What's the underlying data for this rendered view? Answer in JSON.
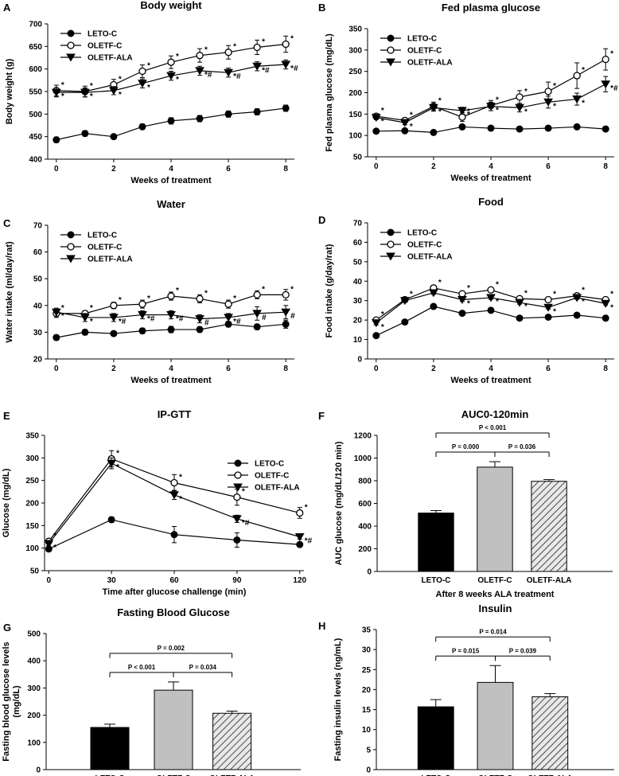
{
  "figure": {
    "colors": {
      "leto": "#000000",
      "oletf": "#ffffff",
      "bar_gray": "#c0c0c0",
      "hatch_bg": "#e8e8e8"
    }
  },
  "chart_data": [
    {
      "type": "line",
      "letter": "A",
      "title": "Body weight",
      "xlabel": "Weeks of treatment",
      "ylabel": "Body weight (g)",
      "xlim": [
        -0.3,
        8.3
      ],
      "ylim": [
        400,
        700
      ],
      "xticks": [
        0,
        2,
        4,
        6,
        8
      ],
      "yticks": [
        400,
        450,
        500,
        550,
        600,
        650,
        700
      ],
      "legend": {
        "position": "top-left"
      },
      "series": [
        {
          "name": "LETO-C",
          "marker": "filled-circle",
          "x": [
            0,
            1,
            2,
            3,
            4,
            5,
            6,
            7,
            8
          ],
          "y": [
            443,
            457,
            450,
            472,
            485,
            490,
            500,
            505,
            513
          ],
          "err": [
            6,
            6,
            5,
            6,
            7,
            7,
            7,
            7,
            7
          ],
          "ann": [
            "",
            "",
            "",
            "",
            "",
            "",
            "",
            "",
            ""
          ]
        },
        {
          "name": "OLETF-C",
          "marker": "open-circle",
          "x": [
            0,
            1,
            2,
            3,
            4,
            5,
            6,
            7,
            8
          ],
          "y": [
            552,
            550,
            565,
            595,
            615,
            630,
            637,
            648,
            655
          ],
          "err": [
            12,
            12,
            12,
            14,
            14,
            15,
            15,
            16,
            18
          ],
          "ann": [
            "*",
            "*",
            "*",
            "*",
            "*",
            "*",
            "*",
            "*",
            "*"
          ]
        },
        {
          "name": "OLETF-ALA",
          "marker": "filled-triangle",
          "x": [
            0,
            1,
            2,
            3,
            4,
            5,
            6,
            7,
            8
          ],
          "y": [
            548,
            548,
            552,
            568,
            585,
            596,
            592,
            606,
            610
          ],
          "err": [
            10,
            10,
            9,
            10,
            10,
            10,
            10,
            10,
            10
          ],
          "ann": [
            "*",
            "*",
            "*",
            "*",
            "*",
            "*#",
            "*#",
            "*#",
            "*#"
          ]
        }
      ]
    },
    {
      "type": "line",
      "letter": "B",
      "title": "Fed plasma glucose",
      "xlabel": "Weeks of treatment",
      "ylabel": "Fed plasma glucose (mg/dL)",
      "xlim": [
        -0.3,
        8.3
      ],
      "ylim": [
        50,
        350
      ],
      "xticks": [
        0,
        2,
        4,
        6,
        8
      ],
      "yticks": [
        50,
        100,
        150,
        200,
        250,
        300,
        350
      ],
      "legend": {
        "position": "top-left"
      },
      "series": [
        {
          "name": "LETO-C",
          "marker": "filled-circle",
          "x": [
            0,
            1,
            2,
            3,
            4,
            5,
            6,
            7,
            8
          ],
          "y": [
            110,
            111,
            107,
            120,
            117,
            115,
            117,
            120,
            115
          ],
          "err": [
            3,
            3,
            3,
            3,
            3,
            3,
            3,
            3,
            3
          ],
          "ann": [
            "",
            "",
            "",
            "",
            "",
            "",
            "",
            "",
            ""
          ]
        },
        {
          "name": "OLETF-C",
          "marker": "open-circle",
          "x": [
            0,
            1,
            2,
            3,
            4,
            5,
            6,
            7,
            8
          ],
          "y": [
            145,
            135,
            168,
            143,
            170,
            190,
            203,
            240,
            278
          ],
          "err": [
            6,
            6,
            10,
            10,
            12,
            15,
            22,
            30,
            25
          ],
          "ann": [
            "*",
            "*",
            "*",
            "*",
            "*",
            "*",
            "*",
            "*",
            "*"
          ]
        },
        {
          "name": "OLETF-ALA",
          "marker": "filled-triangle",
          "x": [
            0,
            1,
            2,
            3,
            4,
            5,
            6,
            7,
            8
          ],
          "y": [
            142,
            130,
            165,
            158,
            168,
            165,
            178,
            185,
            220
          ],
          "err": [
            5,
            5,
            8,
            8,
            10,
            10,
            14,
            14,
            18
          ],
          "ann": [
            "*",
            "*",
            "*",
            "*",
            "*",
            "*",
            "*",
            "*",
            "*#"
          ]
        }
      ]
    },
    {
      "type": "line",
      "letter": "C",
      "title": "Water",
      "xlabel": "Weeks of treatment",
      "ylabel": "Water intake (ml/day/rat)",
      "xlim": [
        -0.3,
        8.3
      ],
      "ylim": [
        20,
        70
      ],
      "xticks": [
        0,
        2,
        4,
        6,
        8
      ],
      "yticks": [
        20,
        30,
        40,
        50,
        60,
        70
      ],
      "legend": {
        "position": "top-left"
      },
      "series": [
        {
          "name": "LETO-C",
          "marker": "filled-circle",
          "x": [
            0,
            1,
            2,
            3,
            4,
            5,
            6,
            7,
            8
          ],
          "y": [
            28,
            30,
            29.5,
            30.5,
            31,
            31,
            33,
            32,
            33
          ],
          "err": [
            1,
            1,
            0.8,
            1,
            1.2,
            1,
            1,
            1,
            1.5
          ],
          "ann": [
            "",
            "",
            "",
            "",
            "",
            "",
            "",
            "",
            ""
          ]
        },
        {
          "name": "OLETF-C",
          "marker": "open-circle",
          "x": [
            0,
            1,
            2,
            3,
            4,
            5,
            6,
            7,
            8
          ],
          "y": [
            37,
            37,
            40,
            40.5,
            43.5,
            42.5,
            40.5,
            44,
            44
          ],
          "err": [
            1.5,
            1,
            1.2,
            1.5,
            1.5,
            1.5,
            1.5,
            1.5,
            2
          ],
          "ann": [
            "*",
            "*",
            "*",
            "*",
            "*",
            "*",
            "*",
            "*",
            "*"
          ]
        },
        {
          "name": "OLETF-ALA",
          "marker": "filled-triangle",
          "x": [
            0,
            1,
            2,
            3,
            4,
            5,
            6,
            7,
            8
          ],
          "y": [
            37.5,
            35.5,
            35.5,
            36.5,
            36.5,
            35,
            35.5,
            37,
            37.5
          ],
          "err": [
            1.5,
            1.5,
            1.5,
            1.5,
            1.5,
            1.5,
            1.5,
            2.5,
            2.5
          ],
          "ann": [
            "*",
            "*",
            "*#",
            "*#",
            "*#",
            "#",
            "*#",
            "#",
            "#"
          ]
        }
      ]
    },
    {
      "type": "line",
      "letter": "D",
      "title": "Food",
      "xlabel": "Weeks of treatment",
      "ylabel": "Food intake (g/day/rat)",
      "xlim": [
        -0.3,
        8.3
      ],
      "ylim": [
        0,
        70
      ],
      "xticks": [
        0,
        2,
        4,
        6,
        8
      ],
      "yticks": [
        0,
        10,
        20,
        30,
        40,
        50,
        60,
        70
      ],
      "legend": {
        "position": "top-left"
      },
      "series": [
        {
          "name": "LETO-C",
          "marker": "filled-circle",
          "x": [
            0,
            1,
            2,
            3,
            4,
            5,
            6,
            7,
            8
          ],
          "y": [
            12,
            19,
            27,
            23.5,
            25,
            21,
            21.5,
            22.5,
            21
          ],
          "err": [
            0.5,
            0.5,
            0.5,
            0.5,
            0.5,
            0.5,
            0.5,
            0.5,
            0.5
          ],
          "ann": [
            "",
            "",
            "",
            "",
            "",
            "",
            "",
            "",
            ""
          ]
        },
        {
          "name": "OLETF-C",
          "marker": "open-circle",
          "x": [
            0,
            1,
            2,
            3,
            4,
            5,
            6,
            7,
            8
          ],
          "y": [
            20,
            30.5,
            36.5,
            33.5,
            35.5,
            31,
            30.5,
            32.5,
            30.5
          ],
          "err": [
            1,
            0.8,
            0.8,
            0.8,
            0.8,
            0.8,
            0.8,
            0.8,
            0.8
          ],
          "ann": [
            "*",
            "*",
            "*",
            "*",
            "*",
            "*",
            "*",
            "*",
            "*"
          ]
        },
        {
          "name": "OLETF-ALA",
          "marker": "filled-triangle",
          "x": [
            0,
            1,
            2,
            3,
            4,
            5,
            6,
            7,
            8
          ],
          "y": [
            18.5,
            30,
            34,
            30.5,
            31.5,
            29,
            26.5,
            31.5,
            28.5
          ],
          "err": [
            1,
            0.8,
            0.8,
            0.8,
            0.8,
            0.8,
            0.8,
            0.8,
            0.8
          ],
          "ann": [
            "*",
            "",
            "",
            "*",
            "*",
            "*",
            "*",
            "*",
            "*"
          ]
        }
      ]
    },
    {
      "type": "line",
      "letter": "E",
      "title": "IP-GTT",
      "xlabel": "Time after glucose challenge (min)",
      "ylabel": "Glucose (mg/dL)",
      "xlim": [
        -2,
        122
      ],
      "ylim": [
        50,
        350
      ],
      "xticks": [
        0,
        30,
        60,
        90,
        120
      ],
      "yticks": [
        50,
        100,
        150,
        200,
        250,
        300,
        350
      ],
      "legend": {
        "position": "top-right"
      },
      "series": [
        {
          "name": "LETO-C",
          "marker": "filled-circle",
          "x": [
            0,
            30,
            60,
            90,
            120
          ],
          "y": [
            98,
            163,
            130,
            118,
            108
          ],
          "err": [
            3,
            6,
            18,
            16,
            4
          ],
          "ann": [
            "",
            "",
            "",
            "",
            ""
          ]
        },
        {
          "name": "OLETF-C",
          "marker": "open-circle",
          "x": [
            0,
            30,
            60,
            90,
            120
          ],
          "y": [
            115,
            298,
            245,
            213,
            178
          ],
          "err": [
            4,
            18,
            18,
            18,
            12
          ],
          "ann": [
            "*",
            "*",
            "*",
            "*",
            "*"
          ]
        },
        {
          "name": "OLETF-ALA",
          "marker": "filled-triangle",
          "x": [
            0,
            30,
            60,
            90,
            120
          ],
          "y": [
            110,
            288,
            218,
            165,
            125
          ],
          "err": [
            4,
            12,
            10,
            8,
            5
          ],
          "ann": [
            "*",
            "*",
            "*",
            "*#",
            "*#"
          ]
        }
      ]
    },
    {
      "type": "bar",
      "letter": "F",
      "title": "AUC0-120min",
      "xlabel": "After 8 weeks ALA treatment",
      "ylabel": "AUC glucose (mg/dL/120 min)",
      "ylim": [
        0,
        1200
      ],
      "yticks": [
        0,
        200,
        400,
        600,
        800,
        1000,
        1200
      ],
      "categories": [
        "LETO-C",
        "OLETF-C",
        "OLETF-ALA"
      ],
      "values": [
        515,
        920,
        795
      ],
      "err": [
        22,
        48,
        15
      ],
      "comparisons": [
        {
          "pair": [
            0,
            1
          ],
          "label": "P = 0.000"
        },
        {
          "pair": [
            1,
            2
          ],
          "label": "P = 0.036"
        },
        {
          "pair": [
            0,
            2
          ],
          "label": "P < 0.001"
        }
      ]
    },
    {
      "type": "bar",
      "letter": "G",
      "title": "Fasting Blood Glucose",
      "xlabel": "",
      "ylabel": "Fasting blood glucose levels (mg/dL)",
      "ylim": [
        0,
        500
      ],
      "yticks": [
        0,
        100,
        200,
        300,
        400,
        500
      ],
      "categories": [
        "LETO-C",
        "OLETF-C",
        "OLETF-ALA"
      ],
      "values": [
        155,
        292,
        207
      ],
      "err": [
        12,
        30,
        8
      ],
      "comparisons": [
        {
          "pair": [
            0,
            1
          ],
          "label": "P < 0.001"
        },
        {
          "pair": [
            1,
            2
          ],
          "label": "P = 0.034"
        },
        {
          "pair": [
            0,
            2
          ],
          "label": "P = 0.002"
        }
      ]
    },
    {
      "type": "bar",
      "letter": "H",
      "title": "Insulin",
      "xlabel": "",
      "ylabel": "Fasting insulin levels (ng/mL)",
      "ylim": [
        0,
        35
      ],
      "yticks": [
        0,
        5,
        10,
        15,
        20,
        25,
        30,
        35
      ],
      "categories": [
        "LETO-C",
        "OLETF-C",
        "OLETF-ALA"
      ],
      "values": [
        15.7,
        21.8,
        18.2
      ],
      "err": [
        1.8,
        4.2,
        0.8
      ],
      "comparisons": [
        {
          "pair": [
            0,
            1
          ],
          "label": "P = 0.015"
        },
        {
          "pair": [
            1,
            2
          ],
          "label": "P = 0.039"
        },
        {
          "pair": [
            0,
            2
          ],
          "label": "P = 0.014"
        }
      ]
    }
  ]
}
